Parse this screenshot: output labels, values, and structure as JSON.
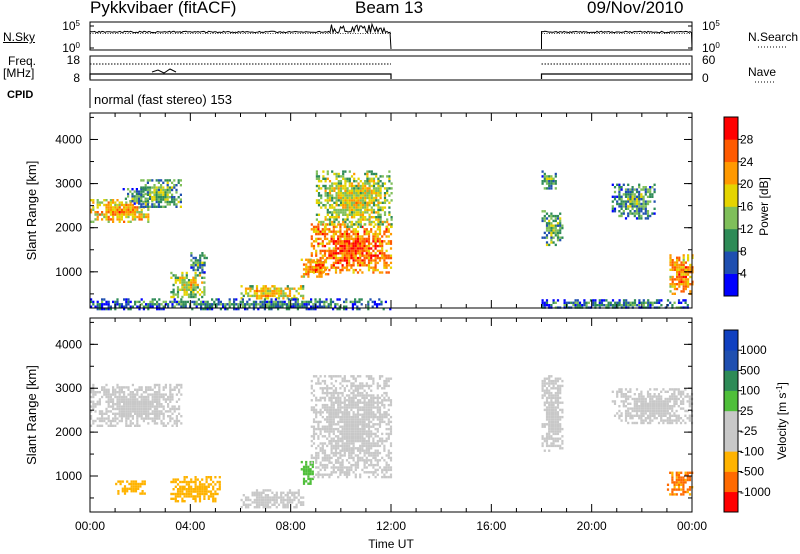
{
  "header": {
    "station": "Pykkvibaer (fitACF)",
    "beam": "Beam 13",
    "date": "09/Nov/2010"
  },
  "side_labels": {
    "nsky": "N.Sky",
    "nsearch": "N.Search",
    "freq_line1": "Freq.",
    "freq_line2": "[MHz]",
    "nave": "Nave",
    "cpid": "CPID"
  },
  "colors": {
    "power": [
      "#0000ff",
      "#1f4fb0",
      "#2e8b57",
      "#7fbf5a",
      "#e5d400",
      "#ff9900",
      "#ff5a00",
      "#ff0000"
    ],
    "velocity": [
      "#ff0000",
      "#ff6a00",
      "#ffb300",
      "#c8c8c8",
      "#c8c8c8",
      "#4fbf3a",
      "#2e8b57",
      "#1f4fb0",
      "#1040c0"
    ]
  },
  "chart_data": [
    {
      "type": "line",
      "panel": "noise",
      "left_axis": {
        "label": "N.Sky",
        "ticks": [
          "10^5",
          "10^0"
        ]
      },
      "right_axis": {
        "label": "N.Search",
        "ticks": [
          "10^5",
          "10^0"
        ]
      },
      "segments_hours": [
        [
          0,
          12
        ],
        [
          18,
          24
        ]
      ]
    },
    {
      "type": "line",
      "panel": "frequency",
      "left_axis": {
        "label": "Freq. [MHz]",
        "ticks": [
          18,
          8
        ]
      },
      "right_axis": {
        "label": "Nave",
        "ticks": [
          60,
          0
        ]
      },
      "segments_hours": [
        [
          0,
          12
        ],
        [
          18,
          24
        ]
      ]
    },
    {
      "type": "table",
      "panel": "cpid",
      "label": "CPID",
      "value": "normal (fast stereo) 153"
    },
    {
      "type": "heatmap",
      "panel": "power",
      "ylabel": "Slant Range [km]",
      "ylim": [
        180,
        4600
      ],
      "yticks": [
        1000,
        2000,
        3000,
        4000
      ],
      "xlim": [
        0,
        24
      ],
      "colorbar": {
        "label": "Power [dB]",
        "ticks": [
          4,
          8,
          12,
          16,
          20,
          24,
          28
        ],
        "range": [
          0,
          32
        ]
      },
      "echo_regions": [
        {
          "t0": 0,
          "t1": 2.3,
          "r0": 2150,
          "r1": 2650,
          "value": 18
        },
        {
          "t0": 1.3,
          "t1": 2.5,
          "r0": 2550,
          "r1": 2900,
          "value": 8
        },
        {
          "t0": 2.0,
          "t1": 3.6,
          "r0": 2500,
          "r1": 3100,
          "value": 10
        },
        {
          "t0": 3.2,
          "t1": 4.6,
          "r0": 450,
          "r1": 1000,
          "value": 14
        },
        {
          "t0": 4.0,
          "t1": 4.7,
          "r0": 1000,
          "r1": 1450,
          "value": 8
        },
        {
          "t0": 6.0,
          "t1": 8.5,
          "r0": 400,
          "r1": 700,
          "value": 16
        },
        {
          "t0": 8.4,
          "t1": 9.5,
          "r0": 900,
          "r1": 1300,
          "value": 20
        },
        {
          "t0": 8.8,
          "t1": 12.0,
          "r0": 1000,
          "r1": 2100,
          "value": 22
        },
        {
          "t0": 9.0,
          "t1": 12.0,
          "r0": 2000,
          "r1": 3300,
          "value": 14
        },
        {
          "t0": 0,
          "t1": 12.0,
          "r0": 180,
          "r1": 400,
          "value": 6
        },
        {
          "t0": 18.0,
          "t1": 18.8,
          "r0": 1600,
          "r1": 2400,
          "value": 10
        },
        {
          "t0": 18.0,
          "t1": 18.6,
          "r0": 2900,
          "r1": 3300,
          "value": 8
        },
        {
          "t0": 20.8,
          "t1": 22.5,
          "r0": 2200,
          "r1": 3000,
          "value": 8
        },
        {
          "t0": 23.1,
          "t1": 24.0,
          "r0": 500,
          "r1": 1400,
          "value": 20
        },
        {
          "t0": 18.0,
          "t1": 24.0,
          "r0": 180,
          "r1": 380,
          "value": 6
        }
      ]
    },
    {
      "type": "heatmap",
      "panel": "velocity",
      "ylabel": "Slant Range [km]",
      "ylim": [
        180,
        4600
      ],
      "yticks": [
        1000,
        2000,
        3000,
        4000
      ],
      "xlim": [
        0,
        24
      ],
      "xlabel": "Time UT",
      "xticks": [
        "00:00",
        "04:00",
        "08:00",
        "12:00",
        "16:00",
        "20:00",
        "00:00"
      ],
      "colorbar": {
        "label": "Velocity [m s^-1]",
        "ticks": [
          1000,
          500,
          100,
          25,
          -25,
          -100,
          -500,
          -1000
        ]
      },
      "echo_regions": [
        {
          "t0": 0,
          "t1": 3.6,
          "r0": 2150,
          "r1": 3100,
          "value": 0
        },
        {
          "t0": 3.2,
          "t1": 5.2,
          "r0": 450,
          "r1": 1000,
          "value": -150
        },
        {
          "t0": 1.0,
          "t1": 2.2,
          "r0": 600,
          "r1": 900,
          "value": -120
        },
        {
          "t0": 6.0,
          "t1": 8.5,
          "r0": 300,
          "r1": 700,
          "value": 0
        },
        {
          "t0": 8.4,
          "t1": 8.9,
          "r0": 800,
          "r1": 1400,
          "value": 150
        },
        {
          "t0": 8.8,
          "t1": 12.0,
          "r0": 1000,
          "r1": 3300,
          "value": 0
        },
        {
          "t0": 18.0,
          "t1": 18.8,
          "r0": 1600,
          "r1": 3300,
          "value": 0
        },
        {
          "t0": 20.8,
          "t1": 24.0,
          "r0": 2200,
          "r1": 3000,
          "value": 0
        },
        {
          "t0": 23.0,
          "t1": 24.0,
          "r0": 600,
          "r1": 1100,
          "value": -400
        }
      ]
    }
  ]
}
